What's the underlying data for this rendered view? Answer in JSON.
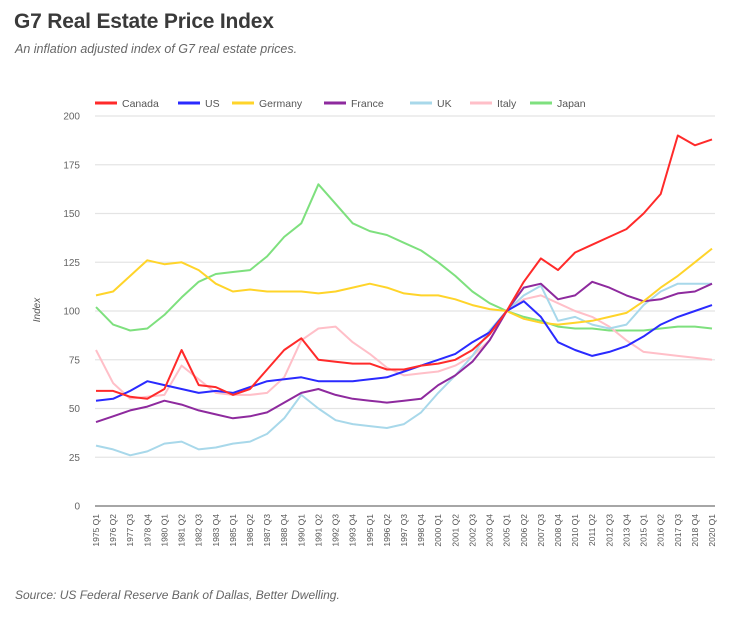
{
  "header": {
    "title": "G7 Real Estate Price Index",
    "subtitle": "An inflation adjusted index of G7 real estate prices."
  },
  "footer": {
    "source": "Source: US Federal Reserve Bank of Dallas, Better Dwelling."
  },
  "chart_data": {
    "type": "line",
    "title": "G7 Real Estate Price Index",
    "subtitle": "An inflation adjusted index of G7 real estate prices.",
    "xlabel": "",
    "ylabel": "Index",
    "ylim": [
      0,
      200
    ],
    "yticks": [
      0,
      25,
      50,
      75,
      100,
      125,
      150,
      175,
      200
    ],
    "grid": true,
    "legend_position": "top",
    "x": [
      "1975 Q1",
      "1976 Q2",
      "1977 Q3",
      "1978 Q4",
      "1980 Q1",
      "1981 Q2",
      "1982 Q3",
      "1983 Q4",
      "1985 Q1",
      "1986 Q2",
      "1987 Q3",
      "1988 Q4",
      "1990 Q1",
      "1991 Q2",
      "1992 Q3",
      "1993 Q4",
      "1995 Q1",
      "1996 Q2",
      "1997 Q3",
      "1998 Q4",
      "2000 Q1",
      "2001 Q2",
      "2002 Q3",
      "2003 Q4",
      "2005 Q1",
      "2006 Q2",
      "2007 Q3",
      "2008 Q4",
      "2010 Q1",
      "2011 Q2",
      "2012 Q3",
      "2013 Q4",
      "2015 Q1",
      "2016 Q2",
      "2017 Q3",
      "2018 Q4",
      "2020 Q1"
    ],
    "series": [
      {
        "name": "Canada",
        "color": "#ff2a2a",
        "values": [
          59,
          59,
          56,
          55,
          60,
          80,
          62,
          61,
          57,
          60,
          70,
          80,
          86,
          75,
          74,
          73,
          73,
          70,
          70,
          72,
          73,
          75,
          80,
          88,
          100,
          115,
          127,
          121,
          130,
          134,
          138,
          142,
          150,
          160,
          190,
          185,
          188
        ]
      },
      {
        "name": "US",
        "color": "#2a2aff",
        "values": [
          54,
          55,
          59,
          64,
          62,
          60,
          58,
          59,
          58,
          61,
          64,
          65,
          66,
          64,
          64,
          64,
          65,
          66,
          69,
          72,
          75,
          78,
          84,
          89,
          100,
          105,
          97,
          84,
          80,
          77,
          79,
          82,
          87,
          93,
          97,
          100,
          103
        ]
      },
      {
        "name": "Germany",
        "color": "#ffd42a",
        "values": [
          108,
          110,
          118,
          126,
          124,
          125,
          121,
          114,
          110,
          111,
          110,
          110,
          110,
          109,
          110,
          112,
          114,
          112,
          109,
          108,
          108,
          106,
          103,
          101,
          100,
          96,
          94,
          93,
          94,
          95,
          97,
          99,
          105,
          112,
          118,
          125,
          132
        ]
      },
      {
        "name": "France",
        "color": "#8e2a9e",
        "values": [
          43,
          46,
          49,
          51,
          54,
          52,
          49,
          47,
          45,
          46,
          48,
          53,
          58,
          60,
          57,
          55,
          54,
          53,
          54,
          55,
          62,
          67,
          74,
          85,
          100,
          112,
          114,
          106,
          108,
          115,
          112,
          108,
          105,
          106,
          109,
          110,
          114
        ]
      },
      {
        "name": "UK",
        "color": "#a8d8ea",
        "values": [
          31,
          29,
          26,
          28,
          32,
          33,
          29,
          30,
          32,
          33,
          37,
          45,
          57,
          50,
          44,
          42,
          41,
          40,
          42,
          48,
          58,
          67,
          77,
          90,
          100,
          108,
          113,
          95,
          97,
          93,
          91,
          93,
          103,
          110,
          114,
          114,
          114
        ]
      },
      {
        "name": "Italy",
        "color": "#ffbfc8",
        "values": [
          80,
          63,
          55,
          56,
          57,
          72,
          65,
          58,
          57,
          57,
          58,
          66,
          85,
          91,
          92,
          84,
          78,
          71,
          67,
          68,
          69,
          72,
          77,
          85,
          100,
          106,
          108,
          104,
          100,
          97,
          92,
          85,
          79,
          78,
          77,
          76,
          75
        ]
      },
      {
        "name": "Japan",
        "color": "#7ee07e",
        "values": [
          102,
          93,
          90,
          91,
          98,
          107,
          115,
          119,
          120,
          121,
          128,
          138,
          145,
          165,
          155,
          145,
          141,
          139,
          135,
          131,
          125,
          118,
          110,
          104,
          100,
          97,
          95,
          92,
          91,
          91,
          90,
          90,
          90,
          91,
          92,
          92,
          91
        ]
      }
    ]
  }
}
